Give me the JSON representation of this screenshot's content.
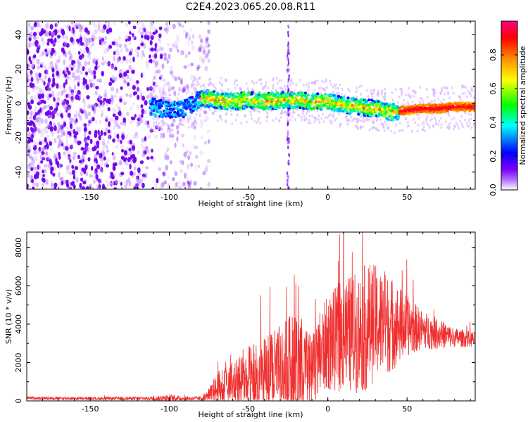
{
  "title": "C2E4.2023.065.20.08.R11",
  "chart_data": [
    {
      "type": "heatmap",
      "xlabel": "Height of straight line (km)",
      "ylabel": "Frequency (Hz)",
      "xlim": [
        -190,
        93
      ],
      "ylim": [
        -50,
        48
      ],
      "xticks": [
        -150,
        -100,
        -50,
        0,
        50
      ],
      "yticks": [
        -40,
        -20,
        0,
        20,
        40
      ],
      "colorbar": {
        "label": "Normalized spectral amplitude",
        "range": [
          0,
          1
        ],
        "ticks": [
          "0.0",
          "0.2",
          "0.4",
          "0.6",
          "0.8"
        ],
        "colors": [
          "#ffffff",
          "#7b00ff",
          "#0000ff",
          "#00ffff",
          "#00ff00",
          "#ffff00",
          "#ff8800",
          "#ff0000",
          "#ff0080"
        ]
      },
      "features": {
        "noise_region_x": [
          -190,
          -75
        ],
        "signal_band_center_hz": [
          [
            -110,
            -2
          ],
          [
            -100,
            -4
          ],
          [
            -90,
            -3
          ],
          [
            -80,
            3
          ],
          [
            -70,
            2
          ],
          [
            -60,
            1
          ],
          [
            -50,
            2
          ],
          [
            -40,
            1
          ],
          [
            -30,
            2
          ],
          [
            -20,
            2
          ],
          [
            -10,
            1
          ],
          [
            0,
            1
          ],
          [
            10,
            -1
          ],
          [
            20,
            -2
          ],
          [
            30,
            -3
          ],
          [
            40,
            -5
          ],
          [
            50,
            -4
          ],
          [
            60,
            -3
          ],
          [
            70,
            -3
          ],
          [
            80,
            -2
          ],
          [
            93,
            -2
          ]
        ],
        "vertical_stripe_x": -25
      }
    },
    {
      "type": "line",
      "xlabel": "Height of straight line (km)",
      "ylabel": "SNR (10 * v/v)",
      "xlim": [
        -190,
        93
      ],
      "ylim": [
        0,
        8800
      ],
      "xticks": [
        -150,
        -100,
        -50,
        0,
        50
      ],
      "yticks": [
        0,
        2000,
        4000,
        6000,
        8000
      ],
      "color": "#f03030",
      "envelope": {
        "x": [
          -190,
          -150,
          -110,
          -100,
          -90,
          -80,
          -75,
          -70,
          -60,
          -50,
          -40,
          -30,
          -20,
          -10,
          -5,
          0,
          10,
          20,
          25,
          30,
          40,
          50,
          60,
          70,
          80,
          93
        ],
        "base": [
          150,
          120,
          130,
          150,
          120,
          130,
          250,
          600,
          900,
          1100,
          1300,
          1600,
          2000,
          1300,
          2400,
          3000,
          3400,
          3600,
          3900,
          4100,
          4000,
          3900,
          3700,
          3500,
          3300,
          3200
        ],
        "amplitude": [
          80,
          80,
          100,
          200,
          100,
          120,
          400,
          900,
          1200,
          1800,
          2000,
          2400,
          2800,
          2000,
          2300,
          2500,
          3000,
          3200,
          3400,
          3000,
          2500,
          1600,
          1000,
          800,
          500,
          400
        ]
      },
      "peak": {
        "x": 10,
        "y": 8800
      }
    }
  ]
}
